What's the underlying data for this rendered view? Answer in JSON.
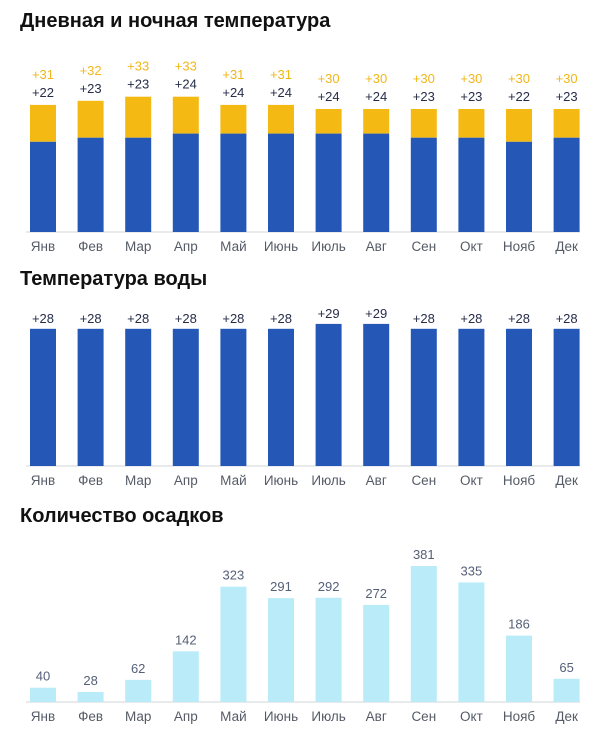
{
  "titles": {
    "temp": "Дневная и ночная температура",
    "water": "Температура воды",
    "rain": "Количество осадков"
  },
  "colors": {
    "night": "#2557b7",
    "day": "#f5b914",
    "water": "#2557b7",
    "rain": "#b9ebf9"
  },
  "chart_data": [
    {
      "type": "bar",
      "title": "Дневная и ночная температура",
      "categories": [
        "Янв",
        "Фев",
        "Мар",
        "Апр",
        "Май",
        "Июнь",
        "Июль",
        "Авг",
        "Сен",
        "Окт",
        "Нояб",
        "Дек"
      ],
      "series": [
        {
          "values": [
            22,
            23,
            23,
            24,
            24,
            24,
            24,
            24,
            23,
            23,
            22,
            23
          ],
          "labels": [
            "+22",
            "+23",
            "+23",
            "+24",
            "+24",
            "+24",
            "+24",
            "+24",
            "+23",
            "+23",
            "+22",
            "+23"
          ]
        },
        {
          "values": [
            31,
            32,
            33,
            33,
            31,
            31,
            30,
            30,
            30,
            30,
            30,
            30
          ],
          "labels": [
            "+31",
            "+32",
            "+33",
            "+33",
            "+31",
            "+31",
            "+30",
            "+30",
            "+30",
            "+30",
            "+30",
            "+30"
          ]
        }
      ],
      "ylim": [
        0,
        40
      ],
      "grid": false
    },
    {
      "type": "bar",
      "title": "Температура воды",
      "categories": [
        "Янв",
        "Фев",
        "Мар",
        "Апр",
        "Май",
        "Июнь",
        "Июль",
        "Авг",
        "Сен",
        "Окт",
        "Нояб",
        "Дек"
      ],
      "values": [
        28,
        28,
        28,
        28,
        28,
        28,
        29,
        29,
        28,
        28,
        28,
        28
      ],
      "labels": [
        "+28",
        "+28",
        "+28",
        "+28",
        "+28",
        "+28",
        "+29",
        "+29",
        "+28",
        "+28",
        "+28",
        "+28"
      ],
      "ylim": [
        0,
        40
      ],
      "grid": false
    },
    {
      "type": "bar",
      "title": "Количество осадков",
      "categories": [
        "Янв",
        "Фев",
        "Мар",
        "Апр",
        "Май",
        "Июнь",
        "Июль",
        "Авг",
        "Сен",
        "Окт",
        "Нояб",
        "Дек"
      ],
      "values": [
        40,
        28,
        62,
        142,
        323,
        291,
        292,
        272,
        381,
        335,
        186,
        65
      ],
      "labels": [
        "40",
        "28",
        "62",
        "142",
        "323",
        "291",
        "292",
        "272",
        "381",
        "335",
        "186",
        "65"
      ],
      "ylim": [
        0,
        381
      ],
      "grid": false
    }
  ]
}
